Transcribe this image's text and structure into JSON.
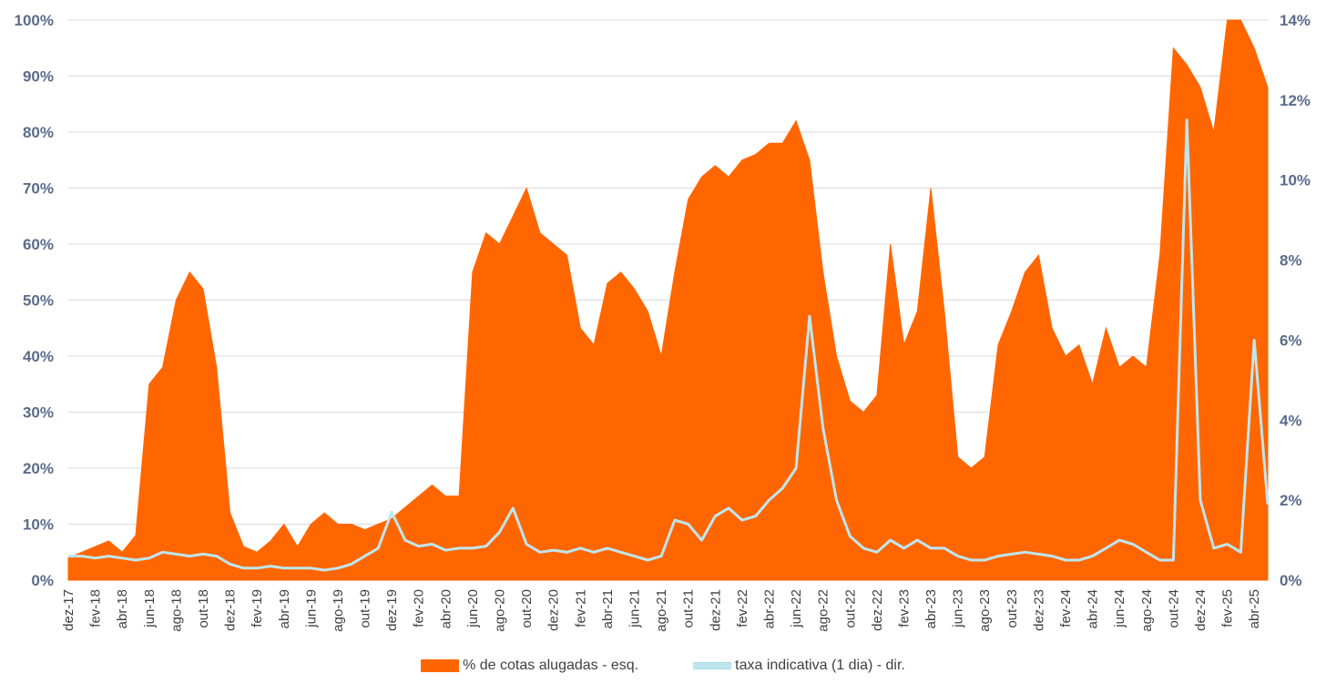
{
  "chart_data": {
    "type": "area",
    "title": "",
    "x": [
      "dez-17",
      "jan-18",
      "fev-18",
      "mar-18",
      "abr-18",
      "mai-18",
      "jun-18",
      "jul-18",
      "ago-18",
      "set-18",
      "out-18",
      "nov-18",
      "dez-18",
      "jan-19",
      "fev-19",
      "mar-19",
      "abr-19",
      "mai-19",
      "jun-19",
      "jul-19",
      "ago-19",
      "set-19",
      "out-19",
      "nov-19",
      "dez-19",
      "jan-20",
      "fev-20",
      "mar-20",
      "abr-20",
      "mai-20",
      "jun-20",
      "jul-20",
      "ago-20",
      "set-20",
      "out-20",
      "nov-20",
      "dez-20",
      "jan-21",
      "fev-21",
      "mar-21",
      "abr-21",
      "mai-21",
      "jun-21",
      "jul-21",
      "ago-21",
      "set-21",
      "out-21",
      "nov-21",
      "dez-21",
      "jan-22",
      "fev-22",
      "mar-22",
      "abr-22",
      "mai-22",
      "jun-22",
      "jul-22",
      "ago-22",
      "set-22",
      "out-22",
      "nov-22",
      "dez-22",
      "jan-23",
      "fev-23",
      "mar-23",
      "abr-23",
      "mai-23",
      "jun-23",
      "jul-23",
      "ago-23",
      "set-23",
      "out-23",
      "nov-23",
      "dez-23",
      "jan-24",
      "fev-24",
      "mar-24",
      "abr-24",
      "mai-24",
      "jun-24",
      "jul-24",
      "ago-24",
      "set-24",
      "out-24",
      "nov-24",
      "dez-24",
      "jan-25",
      "fev-25",
      "mar-25",
      "abr-25",
      "mai-25"
    ],
    "x_tick_labels": [
      "dez-17",
      "fev-18",
      "abr-18",
      "jun-18",
      "ago-18",
      "out-18",
      "dez-18",
      "fev-19",
      "abr-19",
      "jun-19",
      "ago-19",
      "out-19",
      "dez-19",
      "fev-20",
      "abr-20",
      "jun-20",
      "ago-20",
      "out-20",
      "dez-20",
      "fev-21",
      "abr-21",
      "jun-21",
      "ago-21",
      "out-21",
      "dez-21",
      "fev-22",
      "abr-22",
      "jun-22",
      "ago-22",
      "out-22",
      "dez-22",
      "fev-23",
      "abr-23",
      "jun-23",
      "ago-23",
      "out-23",
      "dez-23",
      "fev-24",
      "abr-24",
      "jun-24",
      "ago-24",
      "out-24",
      "dez-24",
      "fev-25",
      "abr-25"
    ],
    "series": [
      {
        "name": "% de cotas alugadas - esq.",
        "axis": "left",
        "color": "#ff6600",
        "values": [
          4,
          5,
          6,
          7,
          5,
          8,
          35,
          38,
          50,
          55,
          52,
          38,
          12,
          6,
          5,
          7,
          10,
          6,
          10,
          12,
          10,
          10,
          9,
          10,
          11,
          13,
          15,
          17,
          15,
          15,
          55,
          62,
          60,
          65,
          70,
          62,
          60,
          58,
          45,
          42,
          53,
          55,
          52,
          48,
          40,
          55,
          68,
          72,
          74,
          72,
          75,
          76,
          78,
          78,
          82,
          75,
          55,
          40,
          32,
          30,
          33,
          60,
          42,
          48,
          70,
          48,
          22,
          20,
          22,
          42,
          48,
          55,
          58,
          45,
          40,
          42,
          35,
          45,
          38,
          40,
          38,
          58,
          95,
          92,
          88,
          80,
          100,
          100,
          95,
          88
        ]
      },
      {
        "name": "taxa indicativa (1 dia) - dir.",
        "axis": "right",
        "color": "#bfe6ee",
        "values": [
          0.6,
          0.6,
          0.55,
          0.6,
          0.55,
          0.5,
          0.55,
          0.7,
          0.65,
          0.6,
          0.65,
          0.6,
          0.4,
          0.3,
          0.3,
          0.35,
          0.3,
          0.3,
          0.3,
          0.25,
          0.3,
          0.4,
          0.6,
          0.8,
          1.7,
          1.0,
          0.85,
          0.9,
          0.75,
          0.8,
          0.8,
          0.85,
          1.2,
          1.8,
          0.9,
          0.7,
          0.75,
          0.7,
          0.8,
          0.7,
          0.8,
          0.7,
          0.6,
          0.5,
          0.6,
          1.5,
          1.4,
          1.0,
          1.6,
          1.8,
          1.5,
          1.6,
          2.0,
          2.3,
          2.8,
          6.6,
          3.8,
          2.0,
          1.1,
          0.8,
          0.7,
          1.0,
          0.8,
          1.0,
          0.8,
          0.8,
          0.6,
          0.5,
          0.5,
          0.6,
          0.65,
          0.7,
          0.65,
          0.6,
          0.5,
          0.5,
          0.6,
          0.8,
          1.0,
          0.9,
          0.7,
          0.5,
          0.5,
          11.5,
          2.0,
          0.8,
          0.9,
          0.7,
          6.0,
          1.9
        ]
      }
    ],
    "y_left": {
      "range": [
        0,
        100
      ],
      "ticks": [
        0,
        10,
        20,
        30,
        40,
        50,
        60,
        70,
        80,
        90,
        100
      ],
      "tick_labels": [
        "0%",
        "10%",
        "20%",
        "30%",
        "40%",
        "50%",
        "60%",
        "70%",
        "80%",
        "90%",
        "100%"
      ]
    },
    "y_right": {
      "range": [
        0,
        14
      ],
      "ticks": [
        0,
        2,
        4,
        6,
        8,
        10,
        12,
        14
      ],
      "tick_labels": [
        "0%",
        "2%",
        "4%",
        "6%",
        "8%",
        "10%",
        "12%",
        "14%"
      ]
    },
    "grid": true,
    "legend_position": "bottom"
  },
  "legend": {
    "area_label": "% de cotas alugadas - esq.",
    "line_label": "taxa indicativa (1 dia) - dir."
  }
}
